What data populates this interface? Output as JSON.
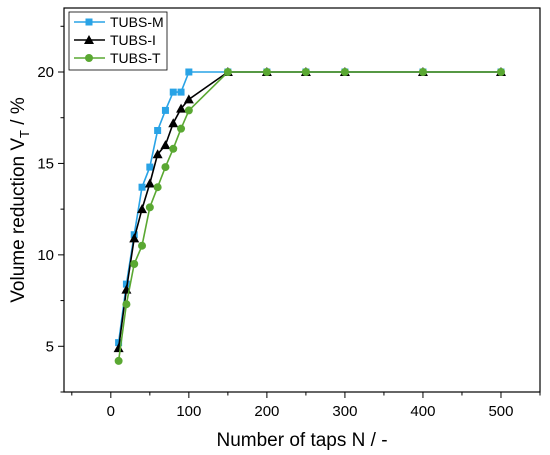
{
  "chart_data": {
    "type": "line",
    "title": "",
    "xlabel": "Number of taps N / -",
    "ylabel_main": "Volume reduction V",
    "ylabel_sub": "T",
    "ylabel_tail": " / %",
    "xlim": [
      -60,
      550
    ],
    "ylim": [
      2.5,
      23.5
    ],
    "xticks": [
      0,
      100,
      200,
      300,
      400,
      500
    ],
    "xminor": [
      -50,
      50,
      150,
      250,
      350,
      450,
      550
    ],
    "yticks": [
      5,
      10,
      15,
      20
    ],
    "yminor": [
      2.5,
      7.5,
      12.5,
      17.5,
      22.5
    ],
    "grid": false,
    "legend_position": "top-left",
    "series": [
      {
        "name": "TUBS-M",
        "color": "#29a3e6",
        "marker": "square",
        "x": [
          10,
          20,
          30,
          40,
          50,
          60,
          70,
          80,
          90,
          100,
          150,
          200,
          250,
          300,
          400,
          500
        ],
        "y": [
          5.2,
          8.4,
          11.1,
          13.7,
          14.8,
          16.8,
          17.9,
          18.9,
          18.9,
          20.0,
          20.0,
          20.0,
          20.0,
          20.0,
          20.0,
          20.0
        ]
      },
      {
        "name": "TUBS-I",
        "color": "#000000",
        "marker": "triangle",
        "x": [
          10,
          20,
          30,
          40,
          50,
          60,
          70,
          80,
          90,
          100,
          150,
          200,
          250,
          300,
          400,
          500
        ],
        "y": [
          4.9,
          8.1,
          10.9,
          12.5,
          13.9,
          15.5,
          16.0,
          17.2,
          18.0,
          18.5,
          20.0,
          20.0,
          20.0,
          20.0,
          20.0,
          20.0
        ]
      },
      {
        "name": "TUBS-T",
        "color": "#5aa832",
        "marker": "circle",
        "x": [
          10,
          20,
          30,
          40,
          50,
          60,
          70,
          80,
          90,
          100,
          150,
          200,
          250,
          300,
          400,
          500
        ],
        "y": [
          4.2,
          7.3,
          9.5,
          10.5,
          12.6,
          13.7,
          14.8,
          15.8,
          16.9,
          17.9,
          20.0,
          20.0,
          20.0,
          20.0,
          20.0,
          20.0
        ]
      }
    ]
  }
}
